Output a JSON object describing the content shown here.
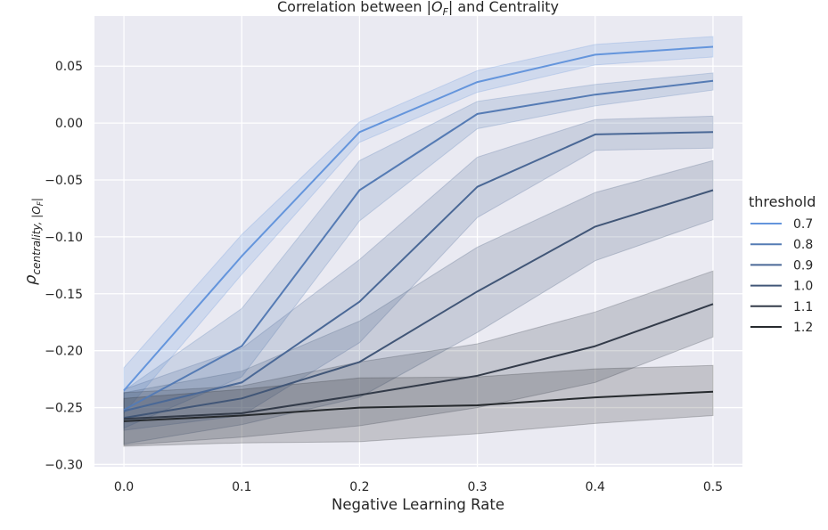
{
  "chart_data": {
    "type": "line",
    "title_parts": [
      "Correlation between |",
      "O",
      "F",
      "| and Centrality"
    ],
    "xlabel": "Negative Learning Rate",
    "ylabel_parts": [
      "ρ",
      "centrality, |O",
      "F",
      "|"
    ],
    "x": [
      0.0,
      0.1,
      0.2,
      0.3,
      0.4,
      0.5
    ],
    "xticks": [
      "0.0",
      "0.1",
      "0.2",
      "0.3",
      "0.4",
      "0.5"
    ],
    "xlim": [
      -0.025,
      0.525
    ],
    "yticks": [
      "0.05",
      "0.00",
      "−0.05",
      "−0.10",
      "−0.15",
      "−0.20",
      "−0.25",
      "−0.30"
    ],
    "ytick_values": [
      0.05,
      0.0,
      -0.05,
      -0.1,
      -0.15,
      -0.2,
      -0.25,
      -0.3
    ],
    "ylim": [
      -0.302,
      0.094
    ],
    "grid": true,
    "legend_position": "right",
    "legend_title": "threshold",
    "series": [
      {
        "name": "0.7",
        "color": "#6495dc",
        "values": [
          -0.235,
          -0.117,
          -0.008,
          0.036,
          0.06,
          0.067
        ],
        "lower": [
          -0.255,
          -0.133,
          -0.017,
          0.027,
          0.051,
          0.058
        ],
        "upper": [
          -0.215,
          -0.098,
          0.001,
          0.046,
          0.069,
          0.076
        ]
      },
      {
        "name": "0.8",
        "color": "#557bb4",
        "values": [
          -0.252,
          -0.196,
          -0.059,
          0.008,
          0.025,
          0.037
        ],
        "lower": [
          -0.268,
          -0.223,
          -0.086,
          -0.005,
          0.015,
          0.029
        ],
        "upper": [
          -0.235,
          -0.163,
          -0.033,
          0.019,
          0.034,
          0.044
        ]
      },
      {
        "name": "0.9",
        "color": "#4a6896",
        "values": [
          -0.253,
          -0.228,
          -0.157,
          -0.056,
          -0.01,
          -0.008
        ],
        "lower": [
          -0.27,
          -0.257,
          -0.193,
          -0.083,
          -0.024,
          -0.022
        ],
        "upper": [
          -0.234,
          -0.198,
          -0.12,
          -0.03,
          0.003,
          0.006
        ]
      },
      {
        "name": "1.0",
        "color": "#415677",
        "values": [
          -0.259,
          -0.242,
          -0.21,
          -0.148,
          -0.091,
          -0.059
        ],
        "lower": [
          -0.282,
          -0.265,
          -0.241,
          -0.184,
          -0.121,
          -0.085
        ],
        "upper": [
          -0.237,
          -0.218,
          -0.174,
          -0.109,
          -0.061,
          -0.033
        ]
      },
      {
        "name": "1.1",
        "color": "#333b49",
        "values": [
          -0.26,
          -0.255,
          -0.239,
          -0.222,
          -0.196,
          -0.159
        ],
        "lower": [
          -0.283,
          -0.276,
          -0.266,
          -0.25,
          -0.228,
          -0.188
        ],
        "upper": [
          -0.237,
          -0.231,
          -0.21,
          -0.194,
          -0.166,
          -0.13
        ]
      },
      {
        "name": "1.2",
        "color": "#262a2e",
        "values": [
          -0.262,
          -0.257,
          -0.25,
          -0.248,
          -0.241,
          -0.236
        ],
        "lower": [
          -0.284,
          -0.281,
          -0.28,
          -0.273,
          -0.264,
          -0.257
        ],
        "upper": [
          -0.242,
          -0.234,
          -0.224,
          -0.223,
          -0.216,
          -0.213
        ]
      }
    ]
  }
}
